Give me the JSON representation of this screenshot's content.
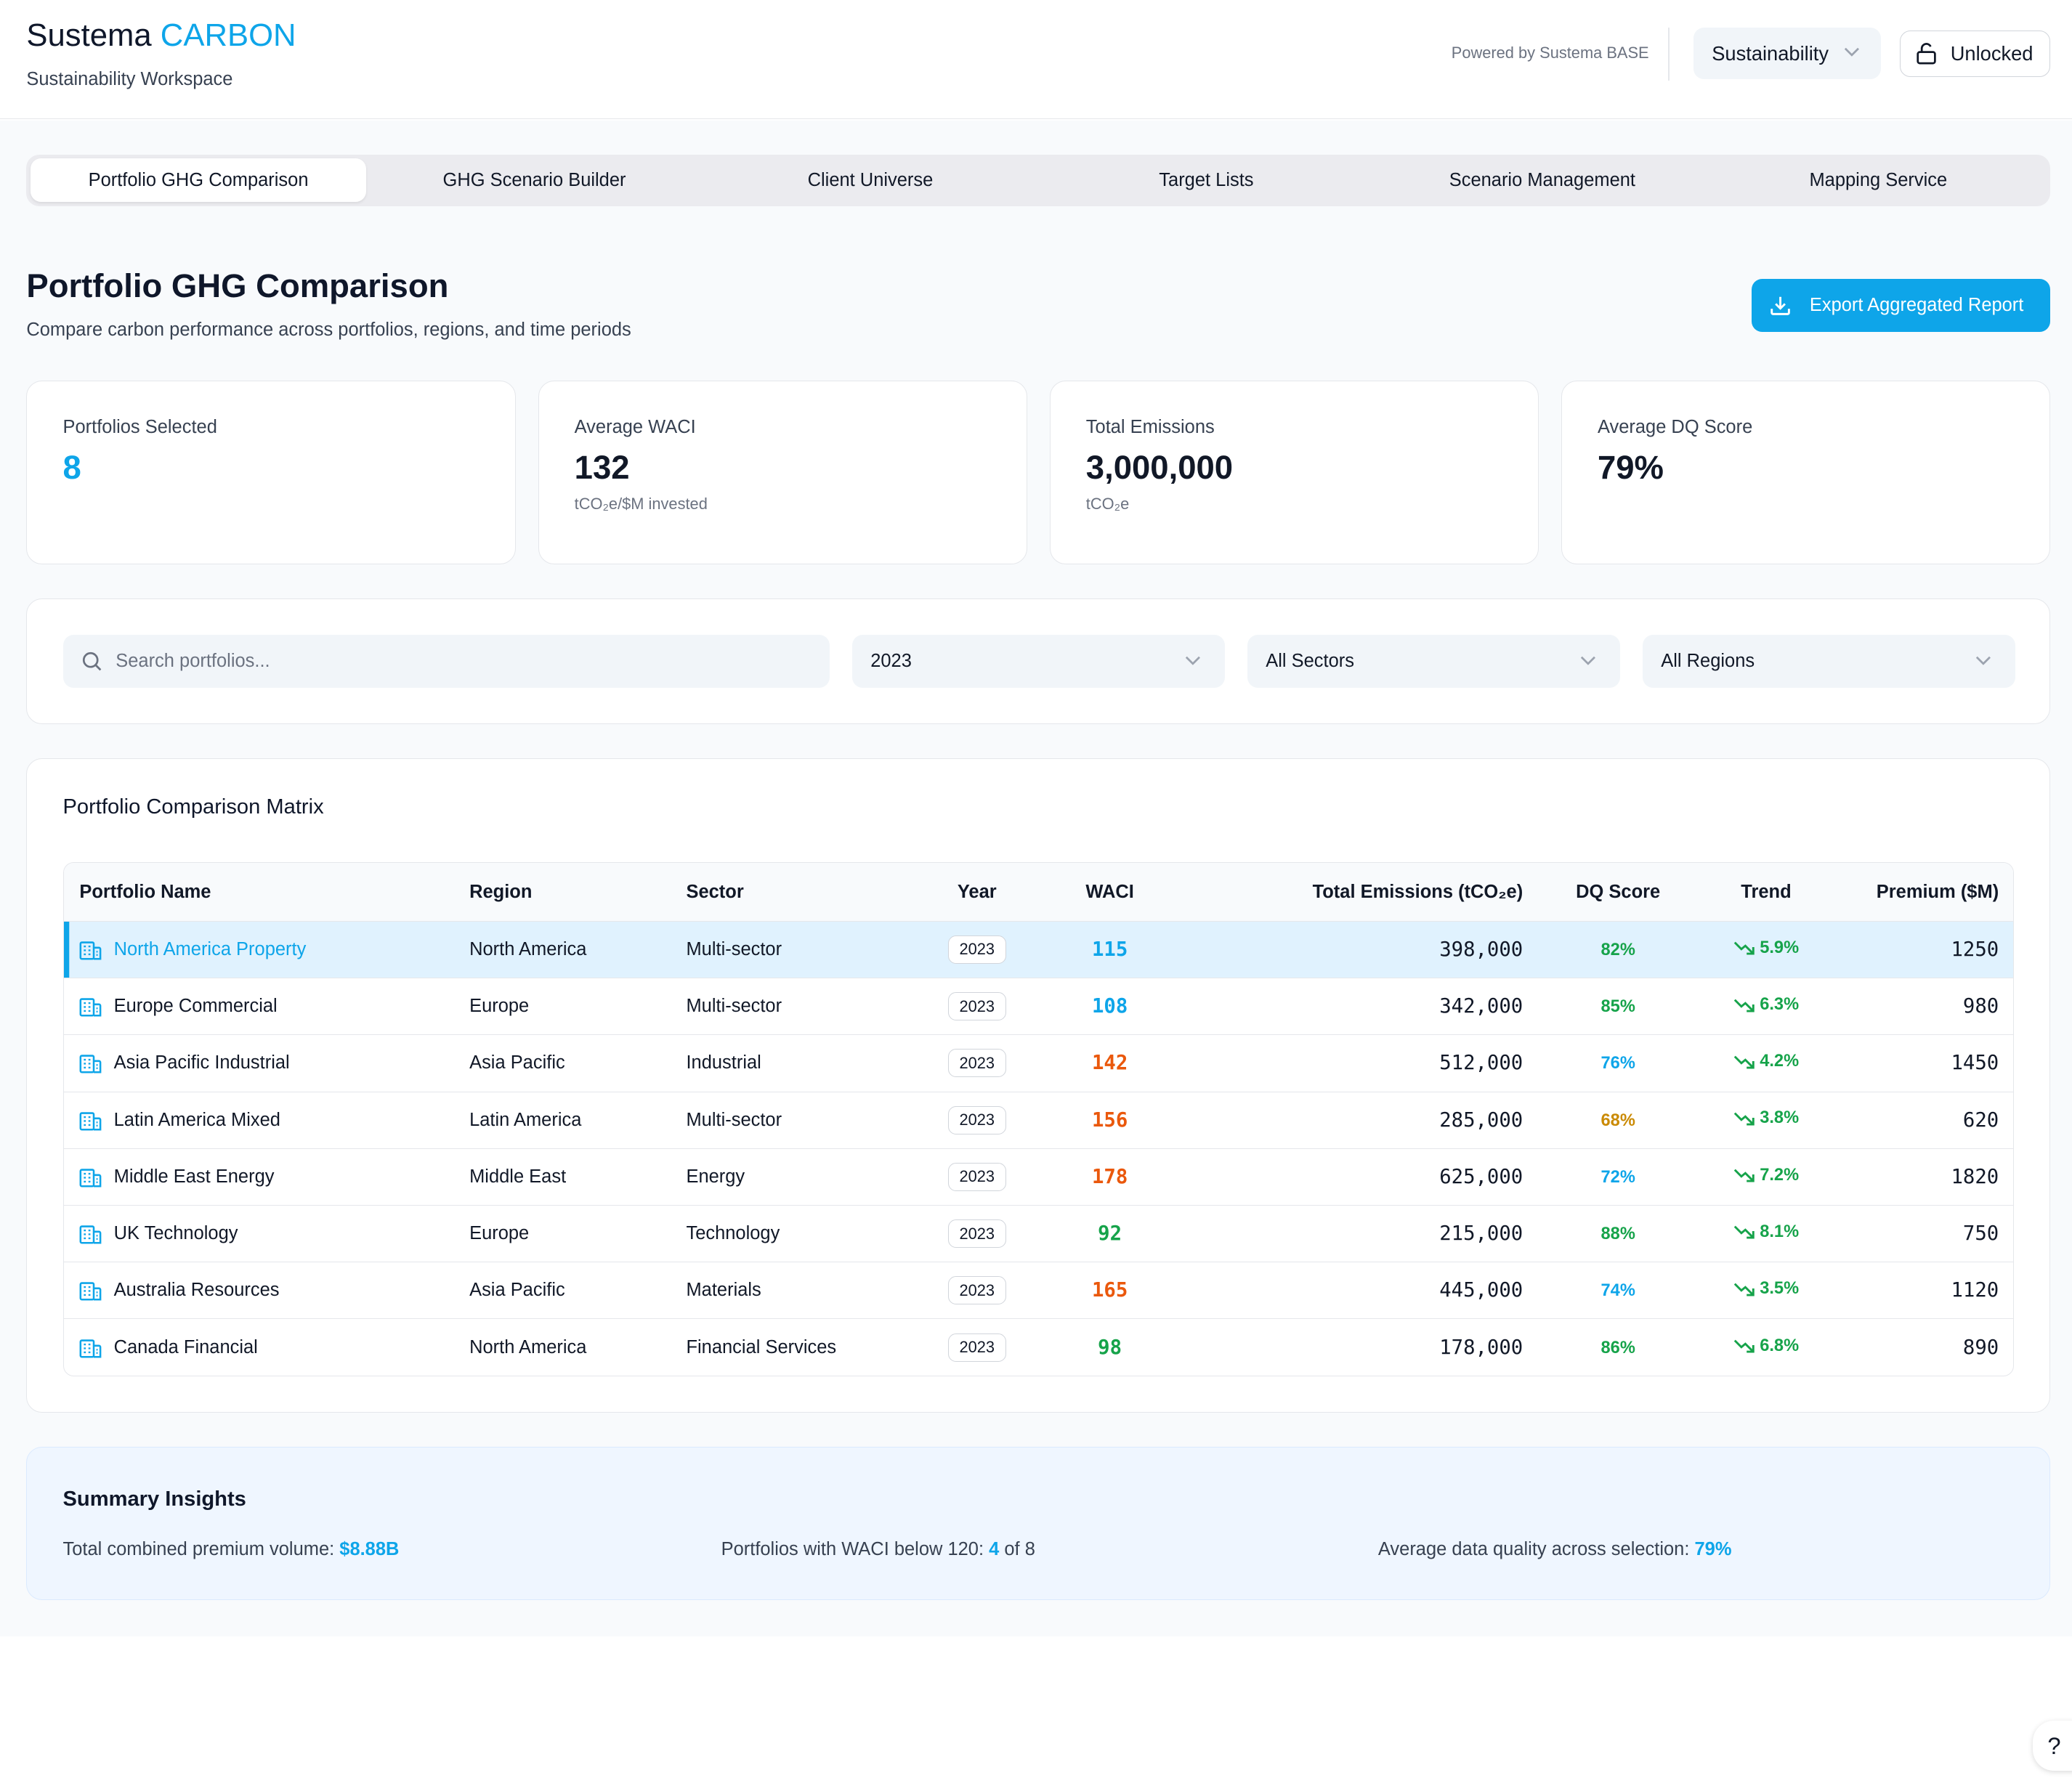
{
  "header": {
    "brand_main": "Sustema",
    "brand_accent": "CARBON",
    "subtitle": "Sustainability Workspace",
    "powered_by": "Powered by Sustema BASE",
    "workspace_select": "Sustainability",
    "lock_label": "Unlocked"
  },
  "tabs": [
    {
      "label": "Portfolio GHG Comparison",
      "active": true
    },
    {
      "label": "GHG Scenario Builder",
      "active": false
    },
    {
      "label": "Client Universe",
      "active": false
    },
    {
      "label": "Target Lists",
      "active": false
    },
    {
      "label": "Scenario Management",
      "active": false
    },
    {
      "label": "Mapping Service",
      "active": false
    }
  ],
  "page": {
    "title": "Portfolio GHG Comparison",
    "subtitle": "Compare carbon performance across portfolios, regions, and time periods",
    "export_label": "Export Aggregated Report"
  },
  "stats": [
    {
      "label": "Portfolios Selected",
      "value": "8",
      "unit": ""
    },
    {
      "label": "Average WACI",
      "value": "132",
      "unit": "tCO₂e/$M invested"
    },
    {
      "label": "Total Emissions",
      "value": "3,000,000",
      "unit": "tCO₂e"
    },
    {
      "label": "Average DQ Score",
      "value": "79%",
      "unit": ""
    }
  ],
  "filters": {
    "search_placeholder": "Search portfolios...",
    "year": "2023",
    "sector": "All Sectors",
    "region": "All Regions"
  },
  "matrix": {
    "title": "Portfolio Comparison Matrix",
    "columns": [
      "Portfolio Name",
      "Region",
      "Sector",
      "Year",
      "WACI",
      "Total Emissions (tCO₂e)",
      "DQ Score",
      "Trend",
      "Premium ($M)"
    ],
    "rows": [
      {
        "name": "North America Property",
        "region": "North America",
        "sector": "Multi-sector",
        "year": "2023",
        "waci": "115",
        "waci_color": "#0ea5e9",
        "emissions": "398,000",
        "dq": "82%",
        "dq_color": "#16a34a",
        "trend": "5.9%",
        "premium": "1250"
      },
      {
        "name": "Europe Commercial",
        "region": "Europe",
        "sector": "Multi-sector",
        "year": "2023",
        "waci": "108",
        "waci_color": "#0ea5e9",
        "emissions": "342,000",
        "dq": "85%",
        "dq_color": "#16a34a",
        "trend": "6.3%",
        "premium": "980"
      },
      {
        "name": "Asia Pacific Industrial",
        "region": "Asia Pacific",
        "sector": "Industrial",
        "year": "2023",
        "waci": "142",
        "waci_color": "#ea580c",
        "emissions": "512,000",
        "dq": "76%",
        "dq_color": "#0ea5e9",
        "trend": "4.2%",
        "premium": "1450"
      },
      {
        "name": "Latin America Mixed",
        "region": "Latin America",
        "sector": "Multi-sector",
        "year": "2023",
        "waci": "156",
        "waci_color": "#ea580c",
        "emissions": "285,000",
        "dq": "68%",
        "dq_color": "#ca8a04",
        "trend": "3.8%",
        "premium": "620"
      },
      {
        "name": "Middle East Energy",
        "region": "Middle East",
        "sector": "Energy",
        "year": "2023",
        "waci": "178",
        "waci_color": "#ea580c",
        "emissions": "625,000",
        "dq": "72%",
        "dq_color": "#0ea5e9",
        "trend": "7.2%",
        "premium": "1820"
      },
      {
        "name": "UK Technology",
        "region": "Europe",
        "sector": "Technology",
        "year": "2023",
        "waci": "92",
        "waci_color": "#16a34a",
        "emissions": "215,000",
        "dq": "88%",
        "dq_color": "#16a34a",
        "trend": "8.1%",
        "premium": "750"
      },
      {
        "name": "Australia Resources",
        "region": "Asia Pacific",
        "sector": "Materials",
        "year": "2023",
        "waci": "165",
        "waci_color": "#ea580c",
        "emissions": "445,000",
        "dq": "74%",
        "dq_color": "#0ea5e9",
        "trend": "3.5%",
        "premium": "1120"
      },
      {
        "name": "Canada Financial",
        "region": "North America",
        "sector": "Financial Services",
        "year": "2023",
        "waci": "98",
        "waci_color": "#16a34a",
        "emissions": "178,000",
        "dq": "86%",
        "dq_color": "#16a34a",
        "trend": "6.8%",
        "premium": "890"
      }
    ]
  },
  "insights": {
    "title": "Summary Insights",
    "premium_label": "Total combined premium volume: ",
    "premium_value": "$8.88B",
    "waci_label": "Portfolios with WACI below 120: ",
    "waci_value": "4",
    "waci_suffix": " of 8",
    "dq_label": "Average data quality across selection: ",
    "dq_value": "79%"
  },
  "help_label": "?",
  "colors": {
    "accent": "#0ea5e9",
    "orange": "#ea580c",
    "green": "#16a34a",
    "amber": "#ca8a04"
  }
}
